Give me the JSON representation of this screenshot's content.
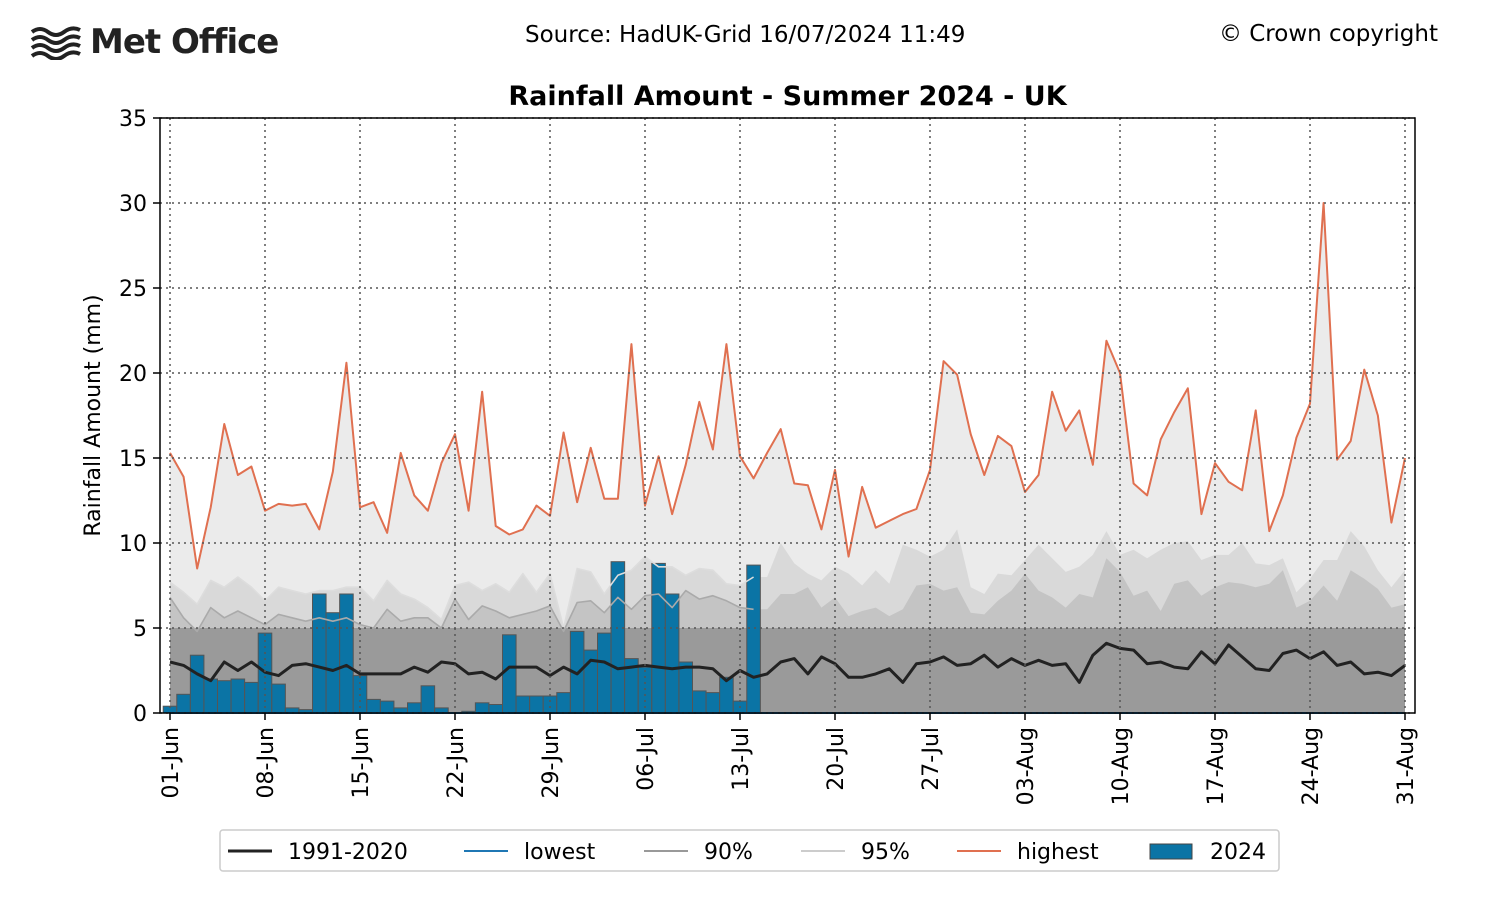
{
  "header": {
    "logo_text": "Met Office",
    "source": "Source: HadUK-Grid 16/07/2024 11:49",
    "copyright": "© Crown copyright"
  },
  "colors": {
    "normal": "#222222",
    "lowest": "#1f77b4",
    "p90": "#999999",
    "p95": "#cccccc",
    "highest": "#e07050",
    "bar2024": "#0b74a5",
    "fill_normal": "#9a9a9a",
    "fill_p90": "#c4c4c4",
    "fill_p95": "#d9d9d9",
    "fill_high": "#ebebeb"
  },
  "chart_data": {
    "type": "bar",
    "title": "Rainfall Amount - Summer 2024 - UK",
    "ylabel": "Rainfall Amount (mm)",
    "xlabel": "",
    "ylim": [
      0,
      35
    ],
    "yticks": [
      0,
      5,
      10,
      15,
      20,
      25,
      30,
      35
    ],
    "start_date": "01-Jun",
    "num_days": 92,
    "xticks": [
      {
        "day": 0,
        "label": "01-Jun"
      },
      {
        "day": 7,
        "label": "08-Jun"
      },
      {
        "day": 14,
        "label": "15-Jun"
      },
      {
        "day": 21,
        "label": "22-Jun"
      },
      {
        "day": 28,
        "label": "29-Jun"
      },
      {
        "day": 35,
        "label": "06-Jul"
      },
      {
        "day": 42,
        "label": "13-Jul"
      },
      {
        "day": 49,
        "label": "20-Jul"
      },
      {
        "day": 56,
        "label": "27-Jul"
      },
      {
        "day": 63,
        "label": "03-Aug"
      },
      {
        "day": 70,
        "label": "10-Aug"
      },
      {
        "day": 77,
        "label": "17-Aug"
      },
      {
        "day": 84,
        "label": "24-Aug"
      },
      {
        "day": 91,
        "label": "31-Aug"
      }
    ],
    "grid": true,
    "legend_position": "bottom",
    "legend": [
      {
        "key": "normal",
        "label": "1991-2020",
        "kind": "line"
      },
      {
        "key": "lowest",
        "label": "lowest",
        "kind": "line"
      },
      {
        "key": "p90",
        "label": "90%",
        "kind": "line"
      },
      {
        "key": "p95",
        "label": "95%",
        "kind": "line"
      },
      {
        "key": "highest",
        "label": "highest",
        "kind": "line"
      },
      {
        "key": "bar2024",
        "label": "2024",
        "kind": "bar"
      }
    ],
    "series": [
      {
        "name": "1991-2020",
        "values": [
          3.0,
          2.8,
          2.3,
          1.9,
          3.0,
          2.5,
          3.0,
          2.4,
          2.2,
          2.8,
          2.9,
          2.7,
          2.5,
          2.8,
          2.3,
          2.3,
          2.3,
          2.3,
          2.7,
          2.4,
          3.0,
          2.9,
          2.3,
          2.4,
          2.0,
          2.7,
          2.7,
          2.7,
          2.2,
          2.7,
          2.3,
          3.1,
          3.0,
          2.6,
          2.7,
          2.8,
          2.7,
          2.6,
          2.7,
          2.7,
          2.6,
          1.9,
          2.5,
          2.1,
          2.3,
          3.0,
          3.2,
          2.3,
          3.3,
          2.9,
          2.1,
          2.1,
          2.3,
          2.6,
          1.8,
          2.9,
          3.0,
          3.3,
          2.8,
          2.9,
          3.4,
          2.7,
          3.2,
          2.8,
          3.1,
          2.8,
          2.9,
          1.8,
          3.4,
          4.1,
          3.8,
          3.7,
          2.9,
          3.0,
          2.7,
          2.6,
          3.6,
          2.9,
          4.0,
          3.3,
          2.6,
          2.5,
          3.5,
          3.7,
          3.2,
          3.6,
          2.8,
          3.0,
          2.3,
          2.4,
          2.2,
          2.8
        ]
      },
      {
        "name": "lowest",
        "values": [
          0,
          0,
          0,
          0,
          0,
          0,
          0,
          0,
          0,
          0,
          0,
          0,
          0,
          0,
          0,
          0,
          0,
          0,
          0,
          0,
          0,
          0,
          0,
          0,
          0,
          0,
          0,
          0,
          0,
          0,
          0,
          0,
          0,
          0,
          0,
          0,
          0,
          0,
          0,
          0,
          0,
          0,
          0,
          0,
          0,
          0,
          0,
          0,
          0,
          0,
          0,
          0,
          0,
          0,
          0,
          0,
          0,
          0,
          0,
          0,
          0,
          0,
          0,
          0,
          0,
          0,
          0,
          0,
          0,
          0,
          0,
          0,
          0,
          0,
          0,
          0,
          0,
          0,
          0,
          0,
          0,
          0,
          0,
          0,
          0,
          0,
          0,
          0,
          0,
          0,
          0,
          0
        ]
      },
      {
        "name": "90%",
        "values": [
          6.8,
          5.6,
          4.8,
          6.2,
          5.6,
          6.0,
          5.6,
          5.2,
          5.8,
          5.6,
          5.4,
          5.6,
          5.4,
          5.6,
          5.2,
          5.0,
          6.1,
          5.4,
          5.6,
          5.6,
          5.0,
          6.7,
          5.5,
          6.3,
          6.0,
          5.6,
          5.8,
          6.0,
          6.3,
          4.8,
          6.5,
          6.6,
          5.9,
          6.8,
          6.1,
          6.9,
          7.0,
          6.2,
          7.2,
          6.7,
          6.9,
          6.6,
          6.2,
          6.1,
          6.1,
          7.0,
          7.0,
          7.4,
          6.2,
          6.8,
          5.7,
          6.0,
          6.2,
          5.7,
          6.1,
          7.5,
          7.6,
          7.2,
          7.4,
          5.9,
          5.8,
          6.6,
          7.2,
          8.2,
          7.2,
          6.8,
          6.2,
          7.0,
          6.8,
          9.1,
          8.3,
          6.9,
          7.2,
          6.0,
          7.6,
          7.8,
          6.9,
          7.4,
          7.7,
          7.6,
          7.4,
          7.6,
          8.4,
          6.2,
          6.6,
          7.5,
          6.6,
          8.4,
          7.9,
          7.3,
          6.2,
          6.4
        ]
      },
      {
        "name": "95%",
        "values": [
          7.7,
          7.1,
          6.4,
          7.8,
          7.4,
          8.0,
          7.4,
          6.6,
          7.4,
          7.2,
          7.0,
          7.2,
          7.2,
          7.4,
          7.4,
          6.6,
          7.8,
          7.0,
          6.7,
          6.2,
          5.5,
          7.5,
          7.7,
          7.2,
          7.6,
          7.1,
          8.2,
          7.1,
          8.2,
          5.0,
          8.5,
          8.3,
          7.0,
          8.1,
          8.4,
          9.2,
          8.6,
          8.6,
          8.1,
          8.5,
          8.4,
          7.6,
          7.5,
          8.0,
          8.0,
          10.0,
          8.8,
          8.2,
          7.8,
          8.6,
          8.2,
          7.5,
          8.4,
          7.6,
          9.9,
          9.6,
          9.2,
          9.6,
          10.8,
          7.4,
          7.0,
          8.2,
          8.1,
          9.0,
          9.9,
          9.1,
          8.3,
          8.6,
          9.3,
          10.7,
          9.3,
          9.6,
          9.1,
          9.6,
          10.0,
          10.1,
          9.0,
          9.3,
          9.3,
          10.0,
          8.8,
          8.7,
          9.1,
          7.1,
          7.9,
          9.0,
          9.0,
          10.7,
          9.8,
          8.4,
          7.4,
          8.4
        ]
      },
      {
        "name": "highest",
        "values": [
          15.3,
          13.9,
          8.5,
          12.1,
          17.0,
          14.0,
          14.5,
          11.9,
          12.3,
          12.2,
          12.3,
          10.8,
          14.2,
          20.6,
          12.1,
          12.4,
          10.6,
          15.3,
          12.8,
          11.9,
          14.7,
          16.4,
          11.9,
          18.9,
          11.0,
          10.5,
          10.8,
          12.2,
          11.6,
          16.5,
          12.4,
          15.6,
          12.6,
          12.6,
          21.7,
          12.2,
          15.1,
          11.7,
          14.6,
          18.3,
          15.5,
          21.7,
          15.1,
          13.8,
          15.3,
          16.7,
          13.5,
          13.4,
          10.8,
          14.3,
          9.2,
          13.3,
          10.9,
          11.3,
          11.7,
          12.0,
          14.3,
          20.7,
          19.9,
          16.4,
          14.0,
          16.3,
          15.7,
          13.0,
          14.0,
          18.9,
          16.6,
          17.8,
          14.6,
          21.9,
          20.0,
          13.5,
          12.8,
          16.1,
          17.7,
          19.1,
          11.7,
          14.7,
          13.6,
          13.1,
          17.8,
          10.7,
          12.8,
          16.2,
          18.2,
          30.0,
          14.9,
          16.0,
          20.2,
          17.5,
          11.2,
          15.0
        ]
      },
      {
        "name": "2024",
        "values": [
          0.4,
          1.1,
          3.4,
          2.0,
          1.9,
          2.0,
          1.8,
          4.7,
          1.7,
          0.3,
          0.2,
          7.0,
          5.9,
          7.0,
          2.2,
          0.8,
          0.7,
          0.3,
          0.6,
          1.6,
          0.3,
          0.0,
          0.1,
          0.6,
          0.5,
          4.6,
          1.0,
          1.0,
          1.0,
          1.2,
          4.8,
          3.7,
          4.7,
          8.9,
          3.2,
          2.7,
          8.8,
          7.0,
          3.0,
          1.3,
          1.2,
          2.1,
          0.7,
          8.7
        ]
      }
    ]
  }
}
